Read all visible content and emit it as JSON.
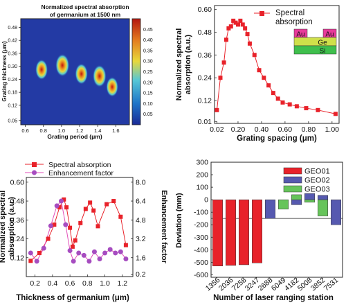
{
  "chart_data": [
    {
      "type": "heatmap",
      "title": "Normalized spectral absorption\nof germanium at 1500 nm",
      "xlabel": "Grating period (μm)",
      "ylabel": "Grating thickness (μm)",
      "xlim": [
        0.55,
        1.75
      ],
      "ylim": [
        0.03,
        0.52
      ],
      "x_ticks": [
        "0.6",
        "0.8",
        "1.0",
        "1.2",
        "1.4",
        "1.6"
      ],
      "x_tick_values": [
        0.6,
        0.8,
        1.0,
        1.2,
        1.4,
        1.6
      ],
      "y_ticks": [
        "0.05",
        "0.12",
        "0.18",
        "0.24",
        "0.30",
        "0.36",
        "0.42",
        "0.48"
      ],
      "y_tick_values": [
        0.05,
        0.12,
        0.18,
        0.24,
        0.3,
        0.36,
        0.42,
        0.48
      ],
      "colorbar_ticks": [
        "0.05",
        "0.10",
        "0.15",
        "0.20",
        "0.25",
        "0.30",
        "0.35",
        "0.40",
        "0.45"
      ],
      "colorbar_values": [
        0.05,
        0.1,
        0.15,
        0.2,
        0.25,
        0.3,
        0.35,
        0.4,
        0.45
      ],
      "colorbar_range": [
        0.0,
        0.5
      ],
      "hotspots": [
        {
          "x": 0.78,
          "y": 0.285,
          "value": 0.38
        },
        {
          "x": 1.01,
          "y": 0.305,
          "value": 0.47
        },
        {
          "x": 1.22,
          "y": 0.265,
          "value": 0.4
        },
        {
          "x": 1.42,
          "y": 0.255,
          "value": 0.45
        },
        {
          "x": 1.56,
          "y": 0.205,
          "value": 0.36
        }
      ]
    },
    {
      "type": "line",
      "xlabel": "Grating spacing (μm)",
      "ylabel": "Normalized spectral\nabsorption (a.u.)",
      "xlim": [
        0,
        1.06
      ],
      "ylim": [
        0,
        0.62
      ],
      "x_ticks": [
        "0.02",
        "0.20",
        "0.40",
        "0.60",
        "0.80",
        "1.00"
      ],
      "x_tick_values": [
        0.02,
        0.2,
        0.4,
        0.6,
        0.8,
        1.0
      ],
      "y_ticks": [
        "0.01",
        "0.12",
        "0.24",
        "0.36",
        "0.48",
        "0.60"
      ],
      "y_tick_values": [
        0.01,
        0.12,
        0.24,
        0.36,
        0.48,
        0.6
      ],
      "series": [
        {
          "name": "Spectral\nabsorption",
          "x": [
            0.02,
            0.05,
            0.08,
            0.1,
            0.12,
            0.14,
            0.16,
            0.18,
            0.2,
            0.22,
            0.24,
            0.26,
            0.28,
            0.3,
            0.34,
            0.38,
            0.42,
            0.46,
            0.5,
            0.54,
            0.58,
            0.64,
            0.7,
            0.78,
            0.88,
            1.03
          ],
          "y": [
            0.07,
            0.24,
            0.32,
            0.44,
            0.5,
            0.51,
            0.54,
            0.53,
            0.52,
            0.54,
            0.52,
            0.5,
            0.47,
            0.42,
            0.36,
            0.28,
            0.24,
            0.2,
            0.16,
            0.13,
            0.11,
            0.1,
            0.09,
            0.08,
            0.07,
            0.05
          ]
        }
      ],
      "inset_labels": [
        "Au",
        "Au",
        "Ge",
        "Si"
      ]
    },
    {
      "type": "line",
      "xlabel": "Thickness of germanium (μm)",
      "ylabel": "Normalized spectral\nabsorption (a.u.)",
      "y2label": "Enhancement factor",
      "xlim": [
        0.1,
        1.32
      ],
      "ylim": [
        0.0,
        0.63
      ],
      "y2lim": [
        0.0,
        8.4
      ],
      "x_ticks": [
        "0.2",
        "0.4",
        "0.6",
        "0.8",
        "1.0",
        "1.2"
      ],
      "x_tick_values": [
        0.2,
        0.4,
        0.6,
        0.8,
        1.0,
        1.2
      ],
      "y_ticks": [
        "0.12",
        "0.24",
        "0.36",
        "0.48",
        "0.60"
      ],
      "y_tick_values": [
        0.12,
        0.24,
        0.36,
        0.48,
        0.6
      ],
      "y2_ticks": [
        "0.2",
        "1.6",
        "3.2",
        "4.8",
        "6.4",
        "8.0"
      ],
      "y2_tick_values": [
        0.2,
        1.6,
        3.2,
        4.8,
        6.4,
        8.0
      ],
      "series": [
        {
          "name": "Spectral absorption",
          "axis": "left",
          "x": [
            0.15,
            0.25,
            0.35,
            0.42,
            0.48,
            0.53,
            0.56,
            0.6,
            0.63,
            0.66,
            0.72,
            0.78,
            0.83,
            0.87,
            0.92,
            1.02,
            1.1,
            1.18,
            1.24
          ],
          "y": [
            0.1,
            0.15,
            0.24,
            0.33,
            0.44,
            0.49,
            0.44,
            0.31,
            0.19,
            0.23,
            0.34,
            0.43,
            0.47,
            0.42,
            0.32,
            0.46,
            0.48,
            0.38,
            0.2
          ]
        },
        {
          "name": "Enhancement factor",
          "axis": "right",
          "x": [
            0.15,
            0.22,
            0.3,
            0.38,
            0.45,
            0.5,
            0.55,
            0.6,
            0.64,
            0.7,
            0.76,
            0.82,
            0.88,
            0.94,
            1.0,
            1.06,
            1.12,
            1.18,
            1.24
          ],
          "y": [
            2.0,
            1.3,
            2.4,
            4.3,
            6.0,
            6.4,
            4.4,
            2.2,
            1.3,
            2.0,
            1.8,
            1.3,
            2.1,
            1.5,
            2.0,
            2.3,
            2.0,
            2.1,
            1.5
          ]
        }
      ]
    },
    {
      "type": "bar",
      "xlabel": "Number of laser ranging station",
      "ylabel": "Deviation (mm)",
      "ylim": [
        -620,
        300
      ],
      "y_ticks": [
        "300",
        "200",
        "100",
        "0",
        "-100",
        "-200",
        "-300",
        "-400",
        "-500",
        "-600"
      ],
      "y_tick_values": [
        300,
        200,
        100,
        0,
        -100,
        -200,
        -300,
        -400,
        -500,
        -600
      ],
      "categories": [
        "1356",
        "2036",
        "7258",
        "3247",
        "2688",
        "6049",
        "4182",
        "5008",
        "3852",
        "7531"
      ],
      "series": [
        {
          "name": "GEO01",
          "values": [
            -530,
            -525,
            -520,
            -505,
            null,
            null,
            null,
            null,
            null,
            null
          ]
        },
        {
          "name": "GEO02",
          "values": [
            null,
            null,
            null,
            null,
            -150,
            null,
            -40,
            50,
            35,
            -200
          ]
        },
        {
          "name": "GEO03",
          "values": [
            null,
            null,
            null,
            null,
            null,
            -75,
            40,
            -20,
            -130,
            null
          ]
        }
      ],
      "colors": {
        "GEO01": "#e8222a",
        "GEO02": "#5659b0",
        "GEO03": "#66c45a"
      }
    }
  ]
}
